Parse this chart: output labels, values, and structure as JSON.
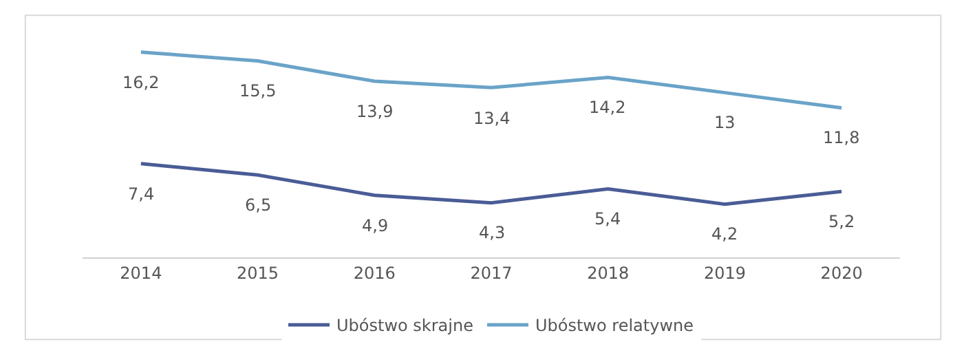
{
  "chart_data": {
    "type": "line",
    "categories": [
      "2014",
      "2015",
      "2016",
      "2017",
      "2018",
      "2019",
      "2020"
    ],
    "series": [
      {
        "name": "Ubóstwo skrajne",
        "color": "#4a5c96",
        "values": [
          7.4,
          6.5,
          4.9,
          4.3,
          5.4,
          4.2,
          5.2
        ],
        "value_labels": [
          "7,4",
          "6,5",
          "4,9",
          "4,3",
          "5,4",
          "4,2",
          "5,2"
        ]
      },
      {
        "name": "Ubóstwo relatywne",
        "color": "#6aa3c8",
        "values": [
          16.2,
          15.5,
          13.9,
          13.4,
          14.2,
          13.0,
          11.8
        ],
        "value_labels": [
          "16,2",
          "15,5",
          "13,9",
          "13,4",
          "14,2",
          "13",
          "11,8"
        ]
      }
    ],
    "legend": "bottom",
    "marker": "none",
    "line_style": "solid",
    "tick_labels": "x"
  }
}
